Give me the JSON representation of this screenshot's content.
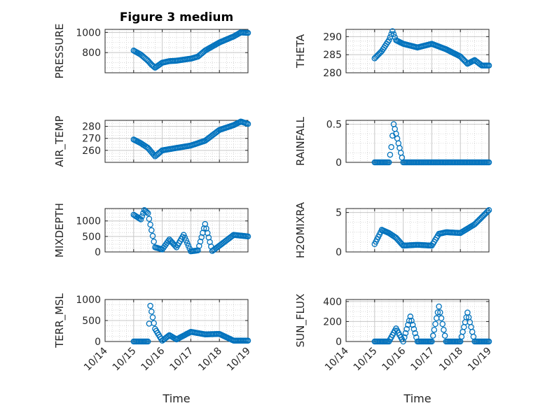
{
  "title": "Figure 3 medium",
  "xlabel": "Time",
  "x_tick_labels": [
    "10/14",
    "10/15",
    "10/16",
    "10/17",
    "10/18",
    "10/19"
  ],
  "marker_color": "#0072BD",
  "chart_data": [
    {
      "type": "scatter",
      "name": "PRESSURE",
      "ylabel": "PRESSURE",
      "xlim": [
        "10/14",
        "10/19"
      ],
      "ylim": [
        600,
        1030
      ],
      "yticks": [
        800,
        1000
      ],
      "x": [
        "10/15 00:00",
        "10/15 06:00",
        "10/15 12:00",
        "10/15 15:00",
        "10/15 18:00",
        "10/16 00:00",
        "10/16 06:00",
        "10/16 12:00",
        "10/17 00:00",
        "10/17 06:00",
        "10/17 12:00",
        "10/18 00:00",
        "10/18 12:00",
        "10/18 18:00",
        "10/19 00:00"
      ],
      "y": [
        820,
        780,
        720,
        680,
        650,
        700,
        715,
        720,
        740,
        760,
        820,
        900,
        960,
        1000,
        995
      ]
    },
    {
      "type": "scatter",
      "name": "THETA",
      "ylabel": "THETA",
      "xlim": [
        "10/14",
        "10/19"
      ],
      "ylim": [
        280,
        292
      ],
      "yticks": [
        280,
        285,
        290
      ],
      "x": [
        "10/15 00:00",
        "10/15 06:00",
        "10/15 12:00",
        "10/15 15:00",
        "10/15 18:00",
        "10/16 00:00",
        "10/16 12:00",
        "10/17 00:00",
        "10/17 12:00",
        "10/18 00:00",
        "10/18 06:00",
        "10/18 12:00",
        "10/18 18:00",
        "10/19 00:00"
      ],
      "y": [
        284,
        286,
        289,
        291.5,
        289,
        288,
        287,
        288,
        286.5,
        284.5,
        282.5,
        283.5,
        282,
        282
      ]
    },
    {
      "type": "scatter",
      "name": "AIR_TEMP",
      "ylabel": "AIR_TEMP",
      "xlim": [
        "10/14",
        "10/19"
      ],
      "ylim": [
        250,
        285
      ],
      "yticks": [
        260,
        270,
        280
      ],
      "x": [
        "10/15 00:00",
        "10/15 06:00",
        "10/15 12:00",
        "10/15 18:00",
        "10/16 00:00",
        "10/16 12:00",
        "10/17 00:00",
        "10/17 12:00",
        "10/18 00:00",
        "10/18 12:00",
        "10/18 18:00",
        "10/19 00:00"
      ],
      "y": [
        269,
        266,
        262,
        255,
        260,
        262,
        264,
        268,
        277,
        281,
        284,
        282
      ]
    },
    {
      "type": "scatter",
      "name": "RAINFALL",
      "ylabel": "RAINFALL",
      "xlim": [
        "10/14",
        "10/19"
      ],
      "ylim": [
        0,
        0.55
      ],
      "yticks": [
        0,
        0.5
      ],
      "x": [
        "10/15 00:00",
        "10/15 12:00",
        "10/15 14:00",
        "10/15 16:00",
        "10/16 00:00",
        "10/17 00:00",
        "10/18 00:00",
        "10/19 00:00"
      ],
      "y": [
        0,
        0,
        0.2,
        0.5,
        0,
        0,
        0,
        0
      ]
    },
    {
      "type": "scatter",
      "name": "MIXDEPTH",
      "ylabel": "MIXDEPTH",
      "xlim": [
        "10/14",
        "10/19"
      ],
      "ylim": [
        0,
        1400
      ],
      "yticks": [
        0,
        500,
        1000
      ],
      "x": [
        "10/15 00:00",
        "10/15 06:00",
        "10/15 09:00",
        "10/15 12:00",
        "10/15 18:00",
        "10/16 00:00",
        "10/16 06:00",
        "10/16 12:00",
        "10/16 18:00",
        "10/17 00:00",
        "10/17 06:00",
        "10/17 12:00",
        "10/17 18:00",
        "10/18 00:00",
        "10/18 12:00",
        "10/19 00:00"
      ],
      "y": [
        1200,
        1050,
        1350,
        1250,
        150,
        80,
        400,
        150,
        550,
        20,
        50,
        900,
        30,
        200,
        550,
        500
      ]
    },
    {
      "type": "scatter",
      "name": "H2OMIXRA",
      "ylabel": "H2OMIXRA",
      "xlim": [
        "10/14",
        "10/19"
      ],
      "ylim": [
        0,
        5.5
      ],
      "yticks": [
        0,
        5
      ],
      "x": [
        "10/15 00:00",
        "10/15 06:00",
        "10/15 12:00",
        "10/15 18:00",
        "10/16 00:00",
        "10/16 12:00",
        "10/17 00:00",
        "10/17 06:00",
        "10/17 12:00",
        "10/18 00:00",
        "10/18 12:00",
        "10/19 00:00"
      ],
      "y": [
        1.0,
        2.8,
        2.4,
        1.8,
        0.8,
        0.9,
        0.8,
        2.3,
        2.5,
        2.4,
        3.5,
        5.3
      ]
    },
    {
      "type": "scatter",
      "name": "TERR_MSL",
      "ylabel": "TERR_MSL",
      "xlim": [
        "10/14",
        "10/19"
      ],
      "ylim": [
        0,
        1000
      ],
      "yticks": [
        0,
        500,
        1000
      ],
      "x": [
        "10/15 00:00",
        "10/15 12:00",
        "10/15 14:00",
        "10/15 18:00",
        "10/16 00:00",
        "10/16 06:00",
        "10/16 12:00",
        "10/17 00:00",
        "10/17 12:00",
        "10/18 00:00",
        "10/18 12:00",
        "10/19 00:00"
      ],
      "y": [
        0,
        0,
        850,
        300,
        20,
        150,
        50,
        230,
        170,
        180,
        20,
        20
      ]
    },
    {
      "type": "scatter",
      "name": "SUN_FLUX",
      "ylabel": "SUN_FLUX",
      "xlim": [
        "10/14",
        "10/19"
      ],
      "ylim": [
        0,
        420
      ],
      "yticks": [
        0,
        200,
        400
      ],
      "x": [
        "10/15 00:00",
        "10/15 12:00",
        "10/15 18:00",
        "10/16 00:00",
        "10/16 06:00",
        "10/16 12:00",
        "10/16 18:00",
        "10/17 00:00",
        "10/17 06:00",
        "10/17 12:00",
        "10/17 18:00",
        "10/18 00:00",
        "10/18 06:00",
        "10/18 12:00",
        "10/18 18:00",
        "10/19 00:00"
      ],
      "y": [
        0,
        0,
        130,
        0,
        250,
        0,
        0,
        0,
        350,
        0,
        0,
        0,
        290,
        0,
        0,
        0
      ]
    }
  ]
}
